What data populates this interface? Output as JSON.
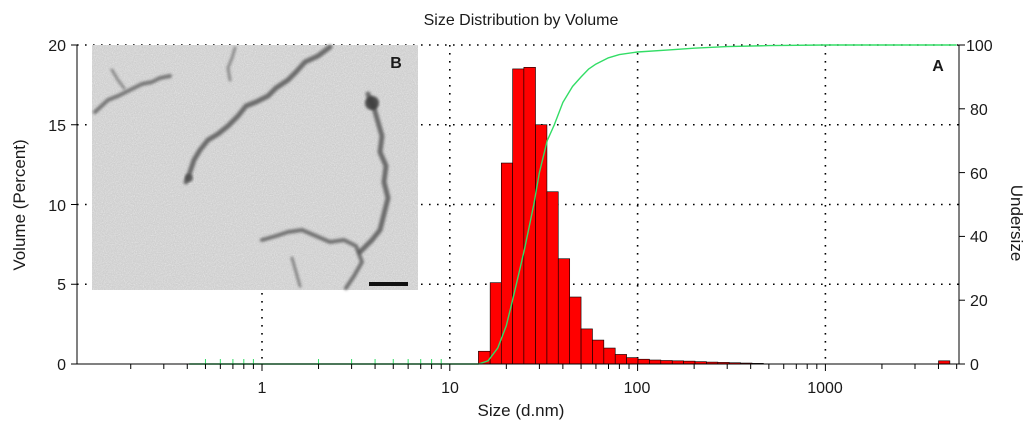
{
  "chart_data": {
    "type": "bar",
    "title": "Size Distribution by Volume",
    "xlabel": "Size (d.nm)",
    "ylabel": "Volume (Percent)",
    "y2label": "Undersize",
    "x_scale": "log",
    "xlim": [
      0.1,
      5000
    ],
    "ylim": [
      0,
      20
    ],
    "y2lim": [
      0,
      100
    ],
    "x_ticks": [
      "1",
      "10",
      "100",
      "1000"
    ],
    "y_ticks": [
      "0",
      "5",
      "10",
      "15",
      "20"
    ],
    "y2_ticks": [
      "0",
      "20",
      "40",
      "60",
      "80",
      "100"
    ],
    "grid": true,
    "panel_labels": {
      "chart": "A",
      "inset": "B"
    },
    "colors": {
      "bars": "#ff0000",
      "bar_edge": "#000000",
      "cumulative": "#33dd66",
      "grid": "#000000"
    },
    "series": [
      {
        "type": "bar",
        "axis": "left",
        "bins": [
          {
            "x_left": 14.2,
            "x_right": 16.4,
            "value": 0.8
          },
          {
            "x_left": 16.4,
            "x_right": 18.8,
            "value": 5.1
          },
          {
            "x_left": 18.8,
            "x_right": 21.6,
            "value": 12.6
          },
          {
            "x_left": 21.6,
            "x_right": 24.8,
            "value": 18.5
          },
          {
            "x_left": 24.8,
            "x_right": 28.6,
            "value": 18.6
          },
          {
            "x_left": 28.6,
            "x_right": 32.9,
            "value": 15.0
          },
          {
            "x_left": 32.9,
            "x_right": 37.8,
            "value": 10.8
          },
          {
            "x_left": 37.8,
            "x_right": 43.5,
            "value": 6.6
          },
          {
            "x_left": 43.5,
            "x_right": 50.0,
            "value": 4.2
          },
          {
            "x_left": 50.0,
            "x_right": 57.5,
            "value": 2.2
          },
          {
            "x_left": 57.5,
            "x_right": 66.1,
            "value": 1.5
          },
          {
            "x_left": 66.1,
            "x_right": 76.0,
            "value": 1.0
          },
          {
            "x_left": 76.0,
            "x_right": 87.4,
            "value": 0.6
          },
          {
            "x_left": 87.4,
            "x_right": 100.5,
            "value": 0.4
          },
          {
            "x_left": 100.5,
            "x_right": 115.6,
            "value": 0.3
          },
          {
            "x_left": 115.6,
            "x_right": 132.9,
            "value": 0.25
          },
          {
            "x_left": 132.9,
            "x_right": 152.9,
            "value": 0.22
          },
          {
            "x_left": 152.9,
            "x_right": 175.8,
            "value": 0.2
          },
          {
            "x_left": 175.8,
            "x_right": 202.2,
            "value": 0.18
          },
          {
            "x_left": 202.2,
            "x_right": 232.5,
            "value": 0.15
          },
          {
            "x_left": 232.5,
            "x_right": 267.4,
            "value": 0.12
          },
          {
            "x_left": 267.4,
            "x_right": 307.5,
            "value": 0.1
          },
          {
            "x_left": 307.5,
            "x_right": 353.6,
            "value": 0.08
          },
          {
            "x_left": 353.6,
            "x_right": 406.7,
            "value": 0.06
          },
          {
            "x_left": 406.7,
            "x_right": 467.7,
            "value": 0.04
          },
          {
            "x_left": 4000,
            "x_right": 4600,
            "value": 0.2
          }
        ]
      },
      {
        "type": "line",
        "axis": "right",
        "x": [
          0.41,
          1,
          10,
          14.2,
          16,
          18,
          20,
          22,
          25,
          28,
          30,
          33,
          36,
          40,
          45,
          50,
          55,
          60,
          70,
          80,
          100,
          150,
          200,
          300,
          500,
          1000,
          5000
        ],
        "y": [
          0,
          0,
          0,
          0,
          1,
          5,
          12,
          22,
          36,
          50,
          60,
          70,
          75,
          82,
          87,
          90,
          92.5,
          94,
          96,
          97,
          97.8,
          98.5,
          99,
          99.5,
          99.8,
          100,
          100
        ]
      }
    ]
  }
}
